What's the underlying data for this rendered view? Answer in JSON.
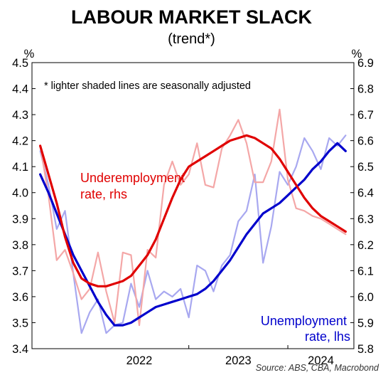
{
  "chart_data": {
    "type": "line",
    "title": "LABOUR MARKET SLACK",
    "subtitle": "(trend*)",
    "note": "*  lighter shaded lines are seasonally adjusted",
    "source": "Source: ABS, CBA, Macrobond",
    "left_axis": {
      "unit": "%",
      "range": [
        3.4,
        4.5
      ],
      "ticks": [
        "3.4",
        "3.5",
        "3.6",
        "3.7",
        "3.8",
        "3.9",
        "4.0",
        "4.1",
        "4.2",
        "4.3",
        "4.4",
        "4.5"
      ]
    },
    "right_axis": {
      "unit": "%",
      "range": [
        5.8,
        6.9
      ],
      "ticks": [
        "5.8",
        "5.9",
        "6.0",
        "6.1",
        "6.2",
        "6.3",
        "6.4",
        "6.5",
        "6.6",
        "6.7",
        "6.8",
        "6.9"
      ]
    },
    "x_axis": {
      "range": [
        "2021-06",
        "2024-09"
      ],
      "year_labels": [
        {
          "label": "2022",
          "at": "2022-07"
        },
        {
          "label": "2023",
          "at": "2023-07"
        },
        {
          "label": "2024",
          "at": "2024-05"
        }
      ],
      "year_dividers": [
        "2023-01",
        "2024-01"
      ]
    },
    "colors": {
      "unemployment_trend": "#0000cc",
      "unemployment_sa": "#a8a8f0",
      "underemployment_trend": "#e00000",
      "underemployment_sa": "#f4a7a7"
    },
    "annotations": {
      "underemployment": [
        "Underemployment",
        "rate, rhs"
      ],
      "unemployment": [
        "Unemployment",
        "rate, lhs"
      ]
    },
    "series": [
      {
        "name": "Unemployment rate, lhs",
        "axis": "left",
        "style": "trend",
        "x": [
          "2021-07",
          "2021-08",
          "2021-09",
          "2021-10",
          "2021-11",
          "2021-12",
          "2022-01",
          "2022-02",
          "2022-03",
          "2022-04",
          "2022-05",
          "2022-06",
          "2022-07",
          "2022-08",
          "2022-09",
          "2022-10",
          "2022-11",
          "2022-12",
          "2023-01",
          "2023-02",
          "2023-03",
          "2023-04",
          "2023-05",
          "2023-06",
          "2023-07",
          "2023-08",
          "2023-09",
          "2023-10",
          "2023-11",
          "2023-12",
          "2024-01",
          "2024-02",
          "2024-03",
          "2024-04",
          "2024-05",
          "2024-06",
          "2024-07",
          "2024-08"
        ],
        "y": [
          4.07,
          4.0,
          3.92,
          3.84,
          3.76,
          3.7,
          3.64,
          3.58,
          3.53,
          3.49,
          3.49,
          3.5,
          3.52,
          3.54,
          3.56,
          3.57,
          3.58,
          3.59,
          3.6,
          3.61,
          3.63,
          3.66,
          3.7,
          3.74,
          3.79,
          3.84,
          3.88,
          3.92,
          3.94,
          3.96,
          3.99,
          4.02,
          4.05,
          4.09,
          4.12,
          4.16,
          4.19,
          4.16
        ]
      },
      {
        "name": "Unemployment rate, lhs (seasonally adjusted)",
        "axis": "left",
        "style": "sa",
        "x": [
          "2021-07",
          "2021-08",
          "2021-09",
          "2021-10",
          "2021-11",
          "2021-12",
          "2022-01",
          "2022-02",
          "2022-03",
          "2022-04",
          "2022-05",
          "2022-06",
          "2022-07",
          "2022-08",
          "2022-09",
          "2022-10",
          "2022-11",
          "2022-12",
          "2023-01",
          "2023-02",
          "2023-03",
          "2023-04",
          "2023-05",
          "2023-06",
          "2023-07",
          "2023-08",
          "2023-09",
          "2023-10",
          "2023-11",
          "2023-12",
          "2024-01",
          "2024-02",
          "2024-03",
          "2024-04",
          "2024-05",
          "2024-06",
          "2024-07",
          "2024-08"
        ],
        "y": [
          4.16,
          4.03,
          3.86,
          3.93,
          3.69,
          3.46,
          3.54,
          3.59,
          3.46,
          3.49,
          3.5,
          3.65,
          3.56,
          3.7,
          3.59,
          3.62,
          3.6,
          3.63,
          3.52,
          3.72,
          3.7,
          3.62,
          3.72,
          3.76,
          3.89,
          3.93,
          4.07,
          3.73,
          3.87,
          4.08,
          4.03,
          4.1,
          4.21,
          4.16,
          4.09,
          4.21,
          4.18,
          4.22
        ]
      },
      {
        "name": "Underemployment rate, rhs",
        "axis": "right",
        "style": "trend",
        "x": [
          "2021-07",
          "2021-08",
          "2021-09",
          "2021-10",
          "2021-11",
          "2021-12",
          "2022-01",
          "2022-02",
          "2022-03",
          "2022-04",
          "2022-05",
          "2022-06",
          "2022-07",
          "2022-08",
          "2022-09",
          "2022-10",
          "2022-11",
          "2022-12",
          "2023-01",
          "2023-02",
          "2023-03",
          "2023-04",
          "2023-05",
          "2023-06",
          "2023-07",
          "2023-08",
          "2023-09",
          "2023-10",
          "2023-11",
          "2023-12",
          "2024-01",
          "2024-02",
          "2024-03",
          "2024-04",
          "2024-05",
          "2024-06",
          "2024-07",
          "2024-08"
        ],
        "y": [
          6.58,
          6.47,
          6.36,
          6.23,
          6.13,
          6.07,
          6.05,
          6.04,
          6.04,
          6.05,
          6.06,
          6.08,
          6.12,
          6.16,
          6.22,
          6.3,
          6.38,
          6.45,
          6.5,
          6.52,
          6.54,
          6.56,
          6.58,
          6.6,
          6.61,
          6.62,
          6.61,
          6.59,
          6.57,
          6.53,
          6.48,
          6.43,
          6.38,
          6.34,
          6.31,
          6.29,
          6.27,
          6.25
        ]
      },
      {
        "name": "Underemployment rate, rhs (seasonally adjusted)",
        "axis": "right",
        "style": "sa",
        "x": [
          "2021-07",
          "2021-08",
          "2021-09",
          "2021-10",
          "2021-11",
          "2021-12",
          "2022-01",
          "2022-02",
          "2022-03",
          "2022-04",
          "2022-05",
          "2022-06",
          "2022-07",
          "2022-08",
          "2022-09",
          "2022-10",
          "2022-11",
          "2022-12",
          "2023-01",
          "2023-02",
          "2023-03",
          "2023-04",
          "2023-05",
          "2023-06",
          "2023-07",
          "2023-08",
          "2023-09",
          "2023-10",
          "2023-11",
          "2023-12",
          "2024-01",
          "2024-02",
          "2024-03",
          "2024-04",
          "2024-05",
          "2024-06",
          "2024-07",
          "2024-08"
        ],
        "y": [
          6.58,
          6.39,
          6.14,
          6.18,
          6.09,
          5.99,
          6.03,
          6.17,
          6.02,
          5.9,
          6.17,
          6.16,
          5.89,
          6.18,
          6.15,
          6.43,
          6.52,
          6.43,
          6.47,
          6.59,
          6.43,
          6.42,
          6.57,
          6.62,
          6.68,
          6.59,
          6.44,
          6.44,
          6.52,
          6.72,
          6.45,
          6.34,
          6.33,
          6.31,
          6.3,
          6.28,
          6.26,
          6.24
        ]
      }
    ]
  }
}
